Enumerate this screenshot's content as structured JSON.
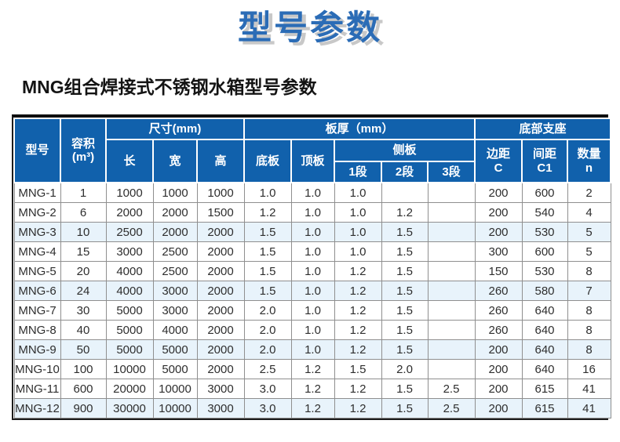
{
  "page": {
    "title": "型号参数",
    "subtitle": "MNG组合焊接式不锈钢水箱型号参数"
  },
  "colors": {
    "title_blue": "#2b6cb6",
    "title_shadow": "#c8c8c8",
    "header_bg": "#1161ac",
    "stripe_bg": "#e8f3fb",
    "outer_border": "#1c1c1c",
    "cell_border": "#8f8f8f"
  },
  "table": {
    "header": {
      "model": "型号",
      "volume_line1": "容积",
      "volume_line2": "(m³)",
      "size_group": "尺寸(mm)",
      "length": "长",
      "width": "宽",
      "height": "高",
      "thickness_group": "板厚（mm）",
      "bottom_plate": "底板",
      "top_plate": "顶板",
      "side_plate_group": "侧板",
      "segment1": "1段",
      "segment2": "2段",
      "segment3": "3段",
      "support_group": "底部支座",
      "edge_line1": "边距",
      "edge_line2": "C",
      "spacing_line1": "间距",
      "spacing_line2": "C1",
      "quantity_line1": "数量",
      "quantity_line2": "n"
    },
    "rows": [
      [
        "MNG-1",
        "1",
        "1000",
        "1000",
        "1000",
        "1.0",
        "1.0",
        "1.0",
        "",
        "",
        "200",
        "600",
        "2"
      ],
      [
        "MNG-2",
        "6",
        "2000",
        "2000",
        "1500",
        "1.2",
        "1.0",
        "1.0",
        "1.2",
        "",
        "200",
        "540",
        "4"
      ],
      [
        "MNG-3",
        "10",
        "2500",
        "2000",
        "2000",
        "1.5",
        "1.0",
        "1.0",
        "1.5",
        "",
        "200",
        "530",
        "5"
      ],
      [
        "MNG-4",
        "15",
        "3000",
        "2500",
        "2000",
        "1.5",
        "1.0",
        "1.0",
        "1.5",
        "",
        "300",
        "600",
        "5"
      ],
      [
        "MNG-5",
        "20",
        "4000",
        "2500",
        "2000",
        "1.5",
        "1.0",
        "1.2",
        "1.5",
        "",
        "150",
        "530",
        "8"
      ],
      [
        "MNG-6",
        "24",
        "4000",
        "3000",
        "2000",
        "1.5",
        "1.0",
        "1.2",
        "1.5",
        "",
        "260",
        "580",
        "7"
      ],
      [
        "MNG-7",
        "30",
        "5000",
        "3000",
        "2000",
        "2.0",
        "1.0",
        "1.2",
        "1.5",
        "",
        "260",
        "640",
        "8"
      ],
      [
        "MNG-8",
        "40",
        "5000",
        "4000",
        "2000",
        "2.0",
        "1.0",
        "1.2",
        "1.5",
        "",
        "260",
        "640",
        "8"
      ],
      [
        "MNG-9",
        "50",
        "5000",
        "5000",
        "2000",
        "2.0",
        "1.0",
        "1.2",
        "1.5",
        "",
        "200",
        "640",
        "8"
      ],
      [
        "MNG-10",
        "100",
        "10000",
        "5000",
        "2000",
        "2.5",
        "1.2",
        "1.5",
        "2.0",
        "",
        "200",
        "640",
        "16"
      ],
      [
        "MNG-11",
        "600",
        "20000",
        "10000",
        "3000",
        "3.0",
        "1.2",
        "1.2",
        "1.5",
        "2.5",
        "200",
        "615",
        "41"
      ],
      [
        "MNG-12",
        "900",
        "30000",
        "10000",
        "3000",
        "3.0",
        "1.2",
        "1.2",
        "1.5",
        "2.5",
        "200",
        "615",
        "41"
      ]
    ],
    "striped_row_numbers": [
      3,
      6,
      9,
      12
    ]
  }
}
